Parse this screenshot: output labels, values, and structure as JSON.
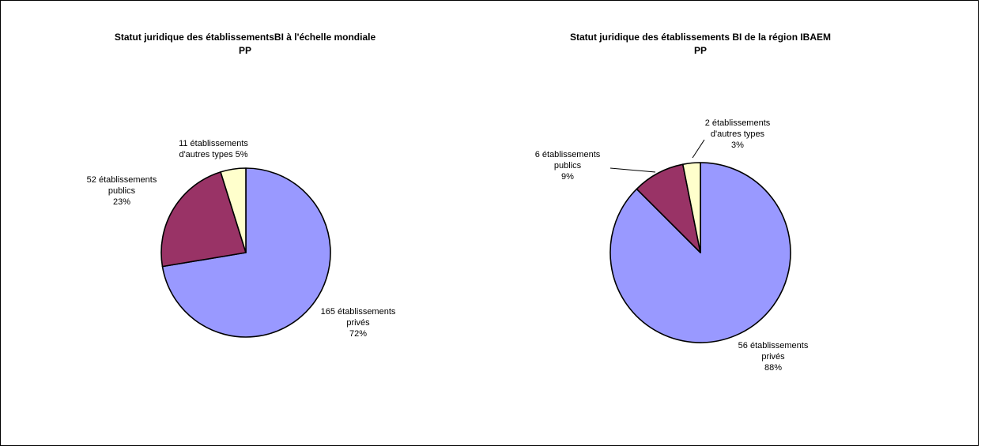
{
  "chart_data": [
    {
      "type": "pie",
      "title": "Statut juridique des établissementsBI à l'échelle mondiale",
      "subtitle": "PP",
      "slices": [
        {
          "label_lines": [
            "165 établissements",
            "privés",
            "72%"
          ],
          "value": 165,
          "percent": 72,
          "color": "#9999FF"
        },
        {
          "label_lines": [
            "52 établissements",
            "publics",
            "23%"
          ],
          "value": 52,
          "percent": 23,
          "color": "#993366"
        },
        {
          "label_lines": [
            "11 établissements",
            "d'autres types 5%"
          ],
          "value": 11,
          "percent": 5,
          "color": "#FFFFCC"
        }
      ]
    },
    {
      "type": "pie",
      "title": "Statut juridique des établissements BI de la région IBAEM",
      "subtitle": "PP",
      "slices": [
        {
          "label_lines": [
            "56 établissements",
            "privés",
            "88%"
          ],
          "value": 56,
          "percent": 88,
          "color": "#9999FF"
        },
        {
          "label_lines": [
            "6 établissements",
            "publics",
            "9%"
          ],
          "value": 6,
          "percent": 9,
          "color": "#993366"
        },
        {
          "label_lines": [
            "2 établissements",
            "d'autres types",
            "3%"
          ],
          "value": 2,
          "percent": 3,
          "color": "#FFFFCC"
        }
      ]
    }
  ]
}
